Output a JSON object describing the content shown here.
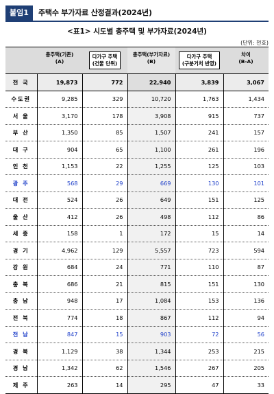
{
  "header": {
    "badge": "붙임1",
    "title": "주택수 부가자료 산정결과(2024년)"
  },
  "table_title": "<표1> 시도별 총주택 및 부가자료(2024년)",
  "unit": "(단위: 천호)",
  "columns": [
    {
      "line1": "",
      "line2": ""
    },
    {
      "line1": "총주택(기존)",
      "line2": "(A)"
    },
    {
      "line1": "다가구 주택",
      "line2": "(건물 단위)"
    },
    {
      "line1": "총주택(부가자료)",
      "line2": "(B)"
    },
    {
      "line1": "다가구 주택",
      "line2": "(구분거처 반영)"
    },
    {
      "line1": "차이",
      "line2": "(B-A)"
    }
  ],
  "rows": [
    {
      "region": "전 국",
      "a": "19,873",
      "multi_building": "772",
      "b": "22,940",
      "multi_split": "3,839",
      "diff": "3,067"
    },
    {
      "region": "수도권",
      "a": "9,285",
      "multi_building": "329",
      "b": "10,720",
      "multi_split": "1,763",
      "diff": "1,434"
    },
    {
      "region": "서 울",
      "a": "3,170",
      "multi_building": "178",
      "b": "3,908",
      "multi_split": "915",
      "diff": "737"
    },
    {
      "region": "부 산",
      "a": "1,350",
      "multi_building": "85",
      "b": "1,507",
      "multi_split": "241",
      "diff": "157"
    },
    {
      "region": "대 구",
      "a": "904",
      "multi_building": "65",
      "b": "1,100",
      "multi_split": "261",
      "diff": "196"
    },
    {
      "region": "인 천",
      "a": "1,153",
      "multi_building": "22",
      "b": "1,255",
      "multi_split": "125",
      "diff": "103"
    },
    {
      "region": "광 주",
      "a": "568",
      "multi_building": "29",
      "b": "669",
      "multi_split": "130",
      "diff": "101"
    },
    {
      "region": "대 전",
      "a": "524",
      "multi_building": "26",
      "b": "649",
      "multi_split": "151",
      "diff": "125"
    },
    {
      "region": "울 산",
      "a": "412",
      "multi_building": "26",
      "b": "498",
      "multi_split": "112",
      "diff": "86"
    },
    {
      "region": "세 종",
      "a": "158",
      "multi_building": "1",
      "b": "172",
      "multi_split": "15",
      "diff": "14"
    },
    {
      "region": "경 기",
      "a": "4,962",
      "multi_building": "129",
      "b": "5,557",
      "multi_split": "723",
      "diff": "594"
    },
    {
      "region": "강 원",
      "a": "684",
      "multi_building": "24",
      "b": "771",
      "multi_split": "110",
      "diff": "87"
    },
    {
      "region": "충 북",
      "a": "686",
      "multi_building": "21",
      "b": "815",
      "multi_split": "151",
      "diff": "130"
    },
    {
      "region": "충 남",
      "a": "948",
      "multi_building": "17",
      "b": "1,084",
      "multi_split": "153",
      "diff": "136"
    },
    {
      "region": "전 북",
      "a": "774",
      "multi_building": "18",
      "b": "867",
      "multi_split": "112",
      "diff": "94"
    },
    {
      "region": "전 남",
      "a": "847",
      "multi_building": "15",
      "b": "903",
      "multi_split": "72",
      "diff": "56"
    },
    {
      "region": "경 북",
      "a": "1,129",
      "multi_building": "38",
      "b": "1,344",
      "multi_split": "253",
      "diff": "215"
    },
    {
      "region": "경 남",
      "a": "1,342",
      "multi_building": "62",
      "b": "1,546",
      "multi_split": "267",
      "diff": "205"
    },
    {
      "region": "제 주",
      "a": "263",
      "multi_building": "14",
      "b": "295",
      "multi_split": "47",
      "diff": "33"
    }
  ],
  "highlight_color": "#1a3cc8",
  "accent_color": "#1f3f75"
}
